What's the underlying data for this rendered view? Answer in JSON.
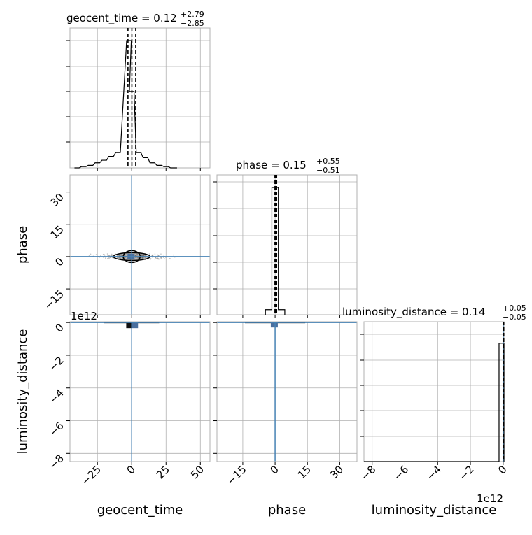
{
  "chart_data": {
    "type": "corner",
    "parameters": [
      "geocent_time",
      "phase",
      "luminosity_distance"
    ],
    "titles": {
      "geocent_time": {
        "label": "geocent_time = 0.12",
        "median": 0.12,
        "plus": "+2.79",
        "minus": "−2.85"
      },
      "phase": {
        "label": "phase = 0.15",
        "median": 0.15,
        "plus": "+0.55",
        "minus": "−0.51"
      },
      "luminosity_distance": {
        "label": "luminosity_distance = 0.14",
        "median": 0.14,
        "plus": "+0.05",
        "minus": "−0.05"
      }
    },
    "axis_labels": {
      "x": [
        "geocent_time",
        "phase",
        "luminosity_distance"
      ],
      "y_phase": "phase",
      "y_lum": "luminosity_distance"
    },
    "ranges": {
      "geocent_time": [
        -45,
        57
      ],
      "phase": [
        -27,
        38
      ],
      "luminosity_distance": [
        -8500000000000.0,
        50000000000.0
      ]
    },
    "ticks": {
      "geocent_time": [
        -25,
        0,
        25,
        50
      ],
      "phase": [
        -15,
        0,
        15,
        30
      ],
      "luminosity_distance": [
        -8,
        -6,
        -4,
        -2,
        0
      ]
    },
    "tick_labels": {
      "geocent_time": [
        "−25",
        "0",
        "25",
        "50"
      ],
      "phase": [
        "−15",
        "0",
        "15",
        "30"
      ],
      "luminosity_distance": [
        "−8",
        "−6",
        "−4",
        "−2",
        "0"
      ]
    },
    "offset_text": "1e12",
    "quantiles": {
      "geocent_time": [
        -2.73,
        0.12,
        2.91
      ],
      "phase": [
        -0.36,
        0.15,
        0.7
      ],
      "luminosity_distance": [
        0.09,
        0.14,
        0.19
      ]
    },
    "truths": {
      "geocent_time": 0.0,
      "phase": 0.0,
      "luminosity_distance": 0.0
    },
    "hist_geocent_time": {
      "bins": [
        -40,
        -35,
        -30,
        -25,
        -20,
        -15,
        -10,
        -5,
        0,
        5,
        10,
        15,
        20,
        25,
        30
      ],
      "bin_width": 3.4,
      "counts": [
        0.0,
        0.01,
        0.02,
        0.04,
        0.06,
        0.09,
        0.12,
        1.0,
        0.6,
        0.12,
        0.08,
        0.04,
        0.02,
        0.01,
        0.0
      ]
    },
    "hist_phase": {
      "bins": [
        -3,
        0,
        3
      ],
      "bin_width": 3.0,
      "counts": [
        0.04,
        1.0,
        0.04
      ]
    },
    "hist_luminosity_distance": {
      "bin_left": -250000000000.0,
      "bin_right": 50000000000.0,
      "height": 0.93
    },
    "grid": true,
    "colors": {
      "hist": "#000000",
      "truth": "#4682b4",
      "grid": "#b0b0b0",
      "contour": "#000000",
      "density": "#4a6f9e"
    }
  }
}
